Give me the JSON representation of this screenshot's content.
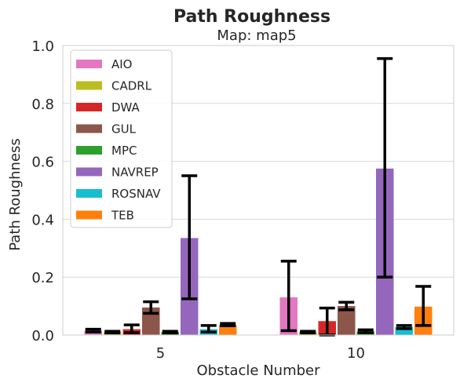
{
  "chart_data": {
    "type": "bar",
    "title": "Path Roughness",
    "subtitle": "Map: map5",
    "xlabel": "Obstacle Number",
    "ylabel": "Path Roughness",
    "ylim": [
      0,
      1.0
    ],
    "yticks": [
      "0.0",
      "0.2",
      "0.4",
      "0.6",
      "0.8",
      "1.0"
    ],
    "categories": [
      "5",
      "10"
    ],
    "grid": true,
    "legend_position": "top-left",
    "series": [
      {
        "name": "AIO",
        "color": "#e377c2",
        "values": [
          0.015,
          0.13
        ],
        "err_low": [
          0.01,
          0.015
        ],
        "err_high": [
          0.02,
          0.255
        ]
      },
      {
        "name": "CADRL",
        "color": "#bcbd22",
        "values": [
          0.01,
          0.01
        ],
        "err_low": [
          0.007,
          0.007
        ],
        "err_high": [
          0.013,
          0.013
        ]
      },
      {
        "name": "DWA",
        "color": "#d62728",
        "values": [
          0.02,
          0.048
        ],
        "err_low": [
          0.008,
          0.0
        ],
        "err_high": [
          0.035,
          0.093
        ]
      },
      {
        "name": "GUL",
        "color": "#8c564b",
        "values": [
          0.095,
          0.1
        ],
        "err_low": [
          0.075,
          0.087
        ],
        "err_high": [
          0.115,
          0.113
        ]
      },
      {
        "name": "MPC",
        "color": "#2ca02c",
        "values": [
          0.01,
          0.013
        ],
        "err_low": [
          0.007,
          0.008
        ],
        "err_high": [
          0.013,
          0.018
        ]
      },
      {
        "name": "NAVREP",
        "color": "#9467bd",
        "values": [
          0.335,
          0.575
        ],
        "err_low": [
          0.125,
          0.2
        ],
        "err_high": [
          0.55,
          0.955
        ]
      },
      {
        "name": "ROSNAV",
        "color": "#17becf",
        "values": [
          0.02,
          0.028
        ],
        "err_low": [
          0.01,
          0.022
        ],
        "err_high": [
          0.033,
          0.033
        ]
      },
      {
        "name": "TEB",
        "color": "#ff7f0e",
        "values": [
          0.035,
          0.098
        ],
        "err_low": [
          0.032,
          0.033
        ],
        "err_high": [
          0.04,
          0.168
        ]
      }
    ]
  }
}
